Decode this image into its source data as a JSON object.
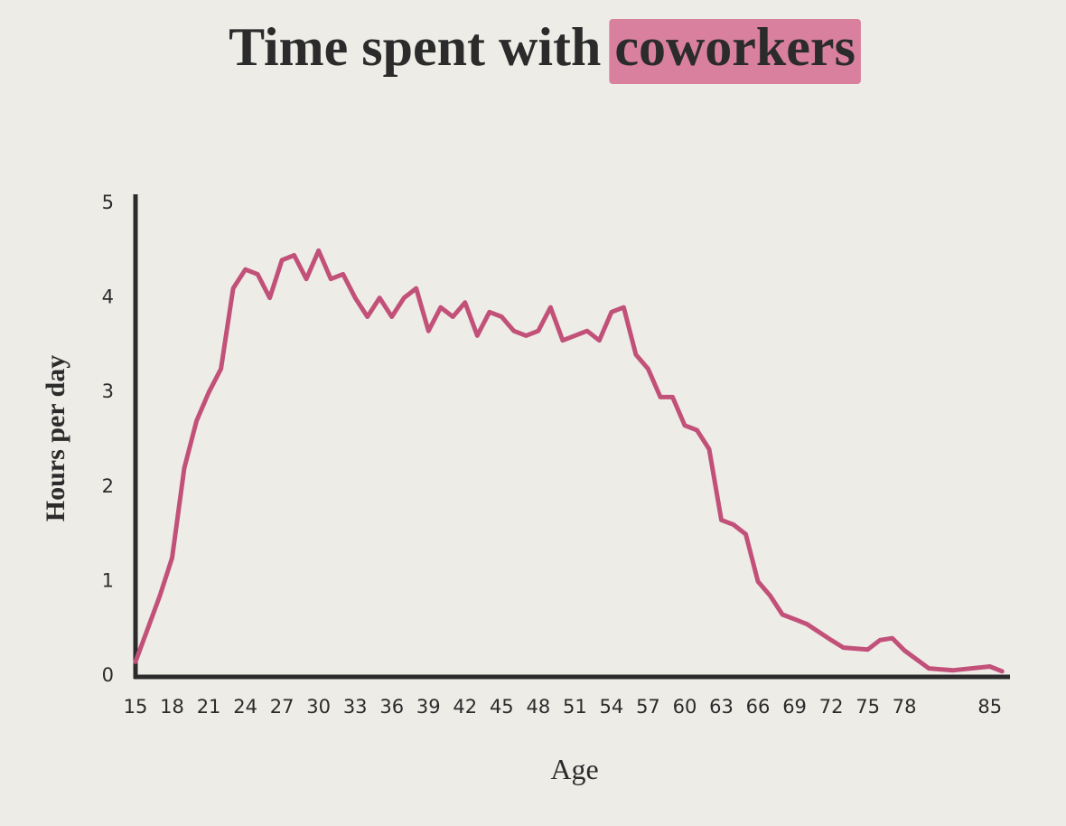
{
  "chart_data": {
    "type": "line",
    "title": "Time spent with",
    "title_highlight": "coworkers",
    "highlight_color": "#d9809f",
    "x_label": "Age",
    "y_label": "Hours per day",
    "x": [
      15,
      16,
      17,
      18,
      19,
      20,
      21,
      22,
      23,
      24,
      25,
      26,
      27,
      28,
      29,
      30,
      31,
      32,
      33,
      34,
      35,
      36,
      37,
      38,
      39,
      40,
      41,
      42,
      43,
      44,
      45,
      46,
      47,
      48,
      49,
      50,
      51,
      52,
      53,
      54,
      55,
      56,
      57,
      58,
      59,
      60,
      61,
      62,
      63,
      64,
      65,
      66,
      67,
      68,
      69,
      70,
      72,
      73,
      75,
      76,
      77,
      78,
      80,
      82,
      85,
      86
    ],
    "series": [
      {
        "name": "Hours per day",
        "color": "#c2517a",
        "values": [
          0.15,
          0.5,
          0.85,
          1.25,
          2.2,
          2.7,
          3.0,
          3.25,
          4.1,
          4.3,
          4.25,
          4.0,
          4.4,
          4.45,
          4.2,
          4.5,
          4.2,
          4.25,
          4.0,
          3.8,
          4.0,
          3.8,
          4.0,
          4.1,
          3.65,
          3.9,
          3.8,
          3.95,
          3.6,
          3.85,
          3.8,
          3.65,
          3.6,
          3.65,
          3.9,
          3.55,
          3.6,
          3.65,
          3.55,
          3.85,
          3.9,
          3.4,
          3.25,
          2.95,
          2.95,
          2.65,
          2.6,
          2.4,
          1.65,
          1.6,
          1.5,
          1.0,
          0.85,
          0.65,
          0.6,
          0.55,
          0.38,
          0.3,
          0.28,
          0.38,
          0.4,
          0.27,
          0.08,
          0.06,
          0.1,
          0.05
        ]
      }
    ],
    "xlim": [
      15,
      86.5
    ],
    "ylim": [
      0,
      5
    ],
    "xticks": [
      15,
      18,
      21,
      24,
      27,
      30,
      33,
      36,
      39,
      42,
      45,
      48,
      51,
      54,
      57,
      60,
      63,
      66,
      69,
      72,
      75,
      78,
      85
    ],
    "yticks": [
      0,
      1,
      2,
      3,
      4,
      5
    ],
    "grid": false
  }
}
